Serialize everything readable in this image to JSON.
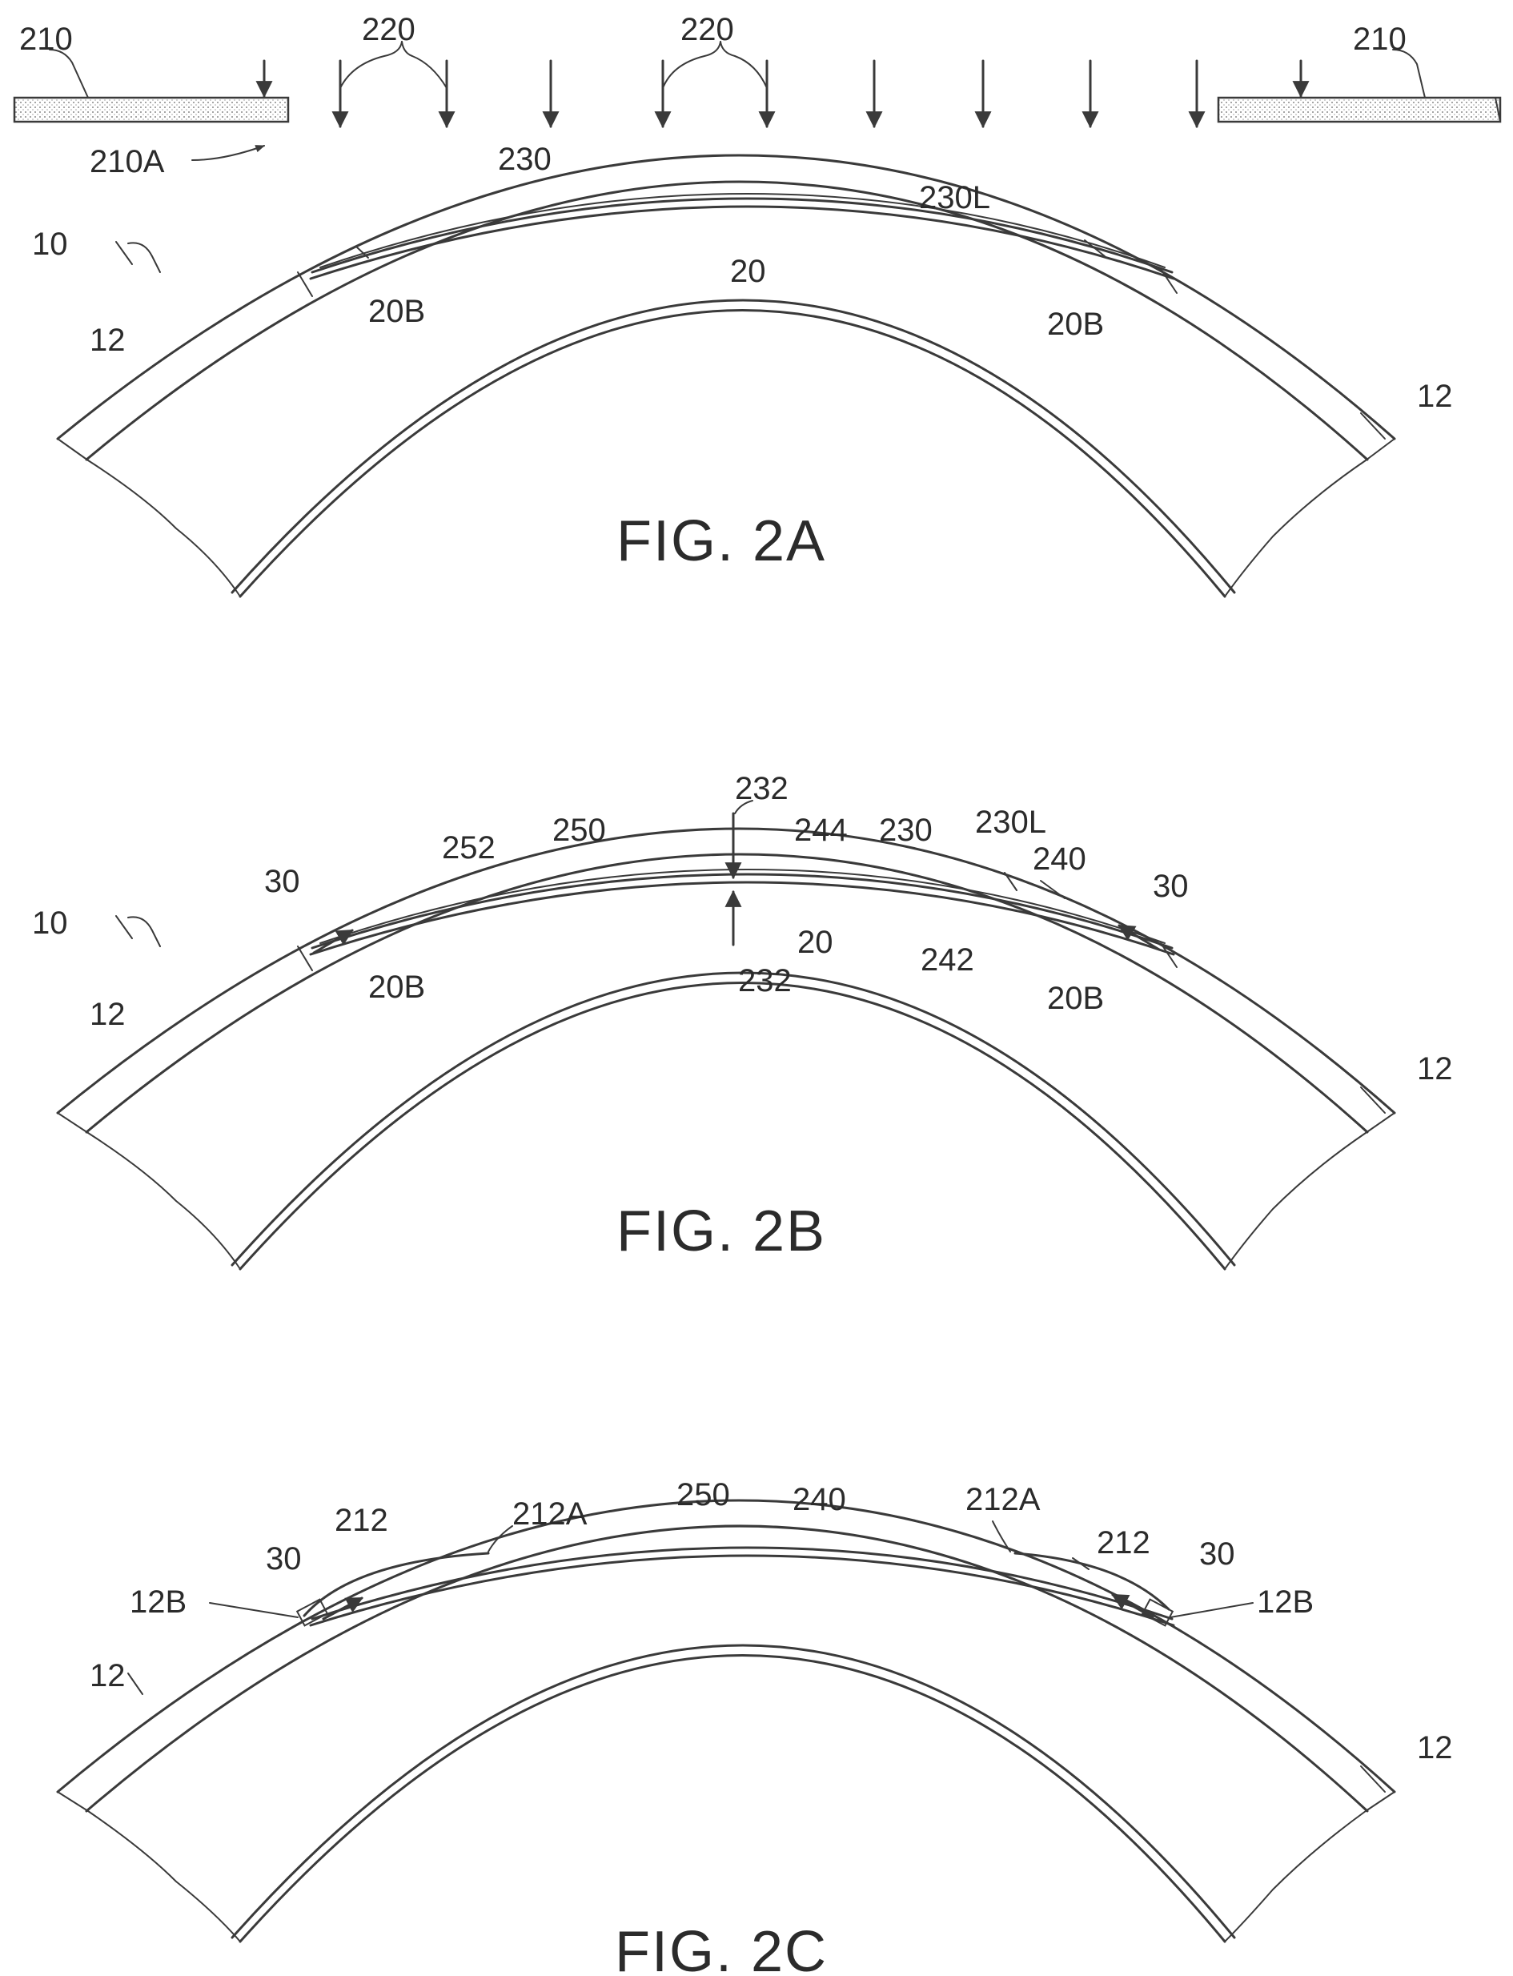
{
  "fig2a": {
    "caption": "FIG. 2A",
    "labels": {
      "l210_left": "210",
      "l210_right": "210",
      "l220_a": "220",
      "l220_b": "220",
      "l210A": "210A",
      "l230": "230",
      "l230L": "230L",
      "l10": "10",
      "l20": "20",
      "l20B_left": "20B",
      "l20B_right": "20B",
      "l12_left": "12",
      "l12_right": "12"
    }
  },
  "fig2b": {
    "caption": "FIG. 2B",
    "labels": {
      "l232_top": "232",
      "l232_bottom": "232",
      "l252": "252",
      "l250": "250",
      "l244": "244",
      "l230": "230",
      "l230L": "230L",
      "l240": "240",
      "l30_left": "30",
      "l30_right": "30",
      "l10": "10",
      "l20": "20",
      "l242": "242",
      "l20B_left": "20B",
      "l20B_right": "20B",
      "l12_left": "12",
      "l12_right": "12"
    }
  },
  "fig2c": {
    "caption": "FIG. 2C",
    "labels": {
      "l250": "250",
      "l240": "240",
      "l212_left": "212",
      "l212A_left": "212A",
      "l212A_right": "212A",
      "l212_right": "212",
      "l30_left": "30",
      "l30_right": "30",
      "l12B_left": "12B",
      "l12B_right": "12B",
      "l12_left": "12",
      "l12_right": "12"
    }
  }
}
